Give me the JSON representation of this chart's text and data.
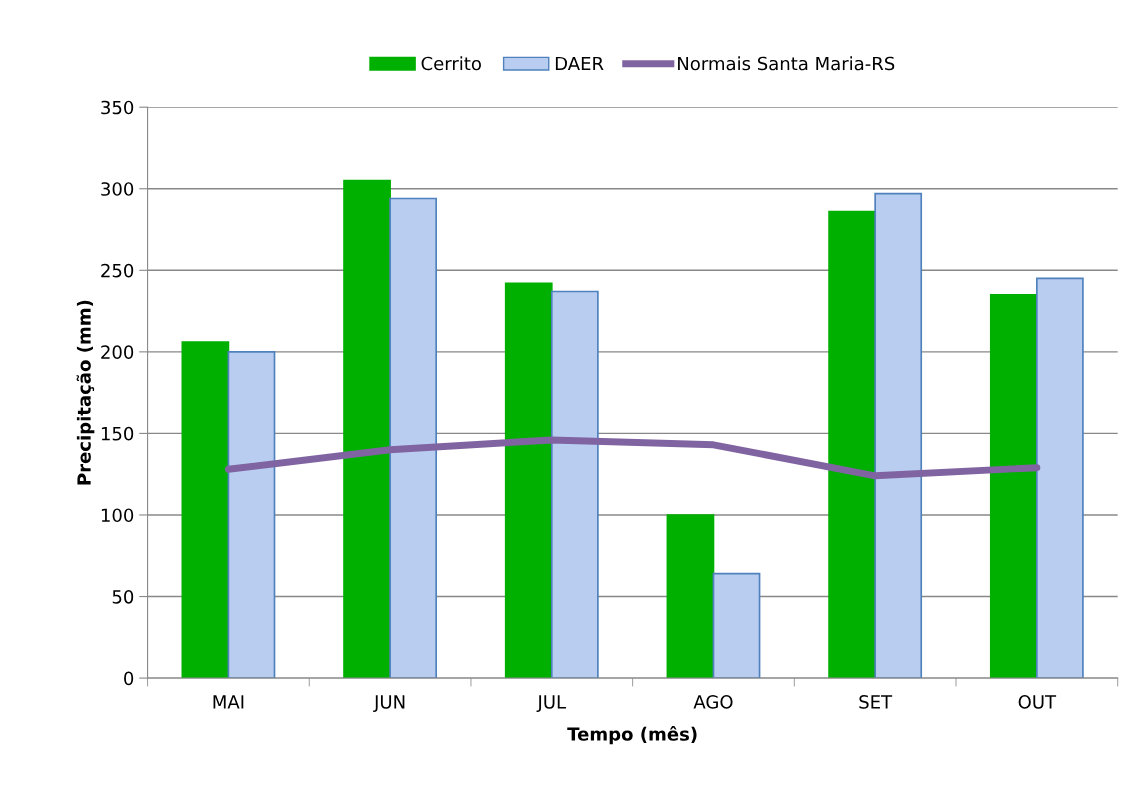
{
  "chart_data": {
    "type": "bar",
    "xlabel": "Tempo (mês)",
    "ylabel": "Precipitação (mm)",
    "categories": [
      "MAI",
      "JUN",
      "JUL",
      "AGO",
      "SET",
      "OUT"
    ],
    "series": [
      {
        "name": "Cerrito",
        "color": "#00b000",
        "values": [
          206,
          305,
          242,
          100,
          286,
          235
        ]
      },
      {
        "name": "DAER",
        "color": "#b9cdf0",
        "values": [
          200,
          294,
          237,
          64,
          297,
          245
        ]
      },
      {
        "name": "Normais Santa Maria-RS",
        "type": "line",
        "color": "#8064a2",
        "values": [
          128,
          140,
          146,
          143,
          124,
          129
        ]
      }
    ],
    "ylim": [
      0,
      350
    ],
    "yticks": [
      0,
      50,
      100,
      150,
      200,
      250,
      300,
      350
    ],
    "grid": "y",
    "legend": "top"
  }
}
